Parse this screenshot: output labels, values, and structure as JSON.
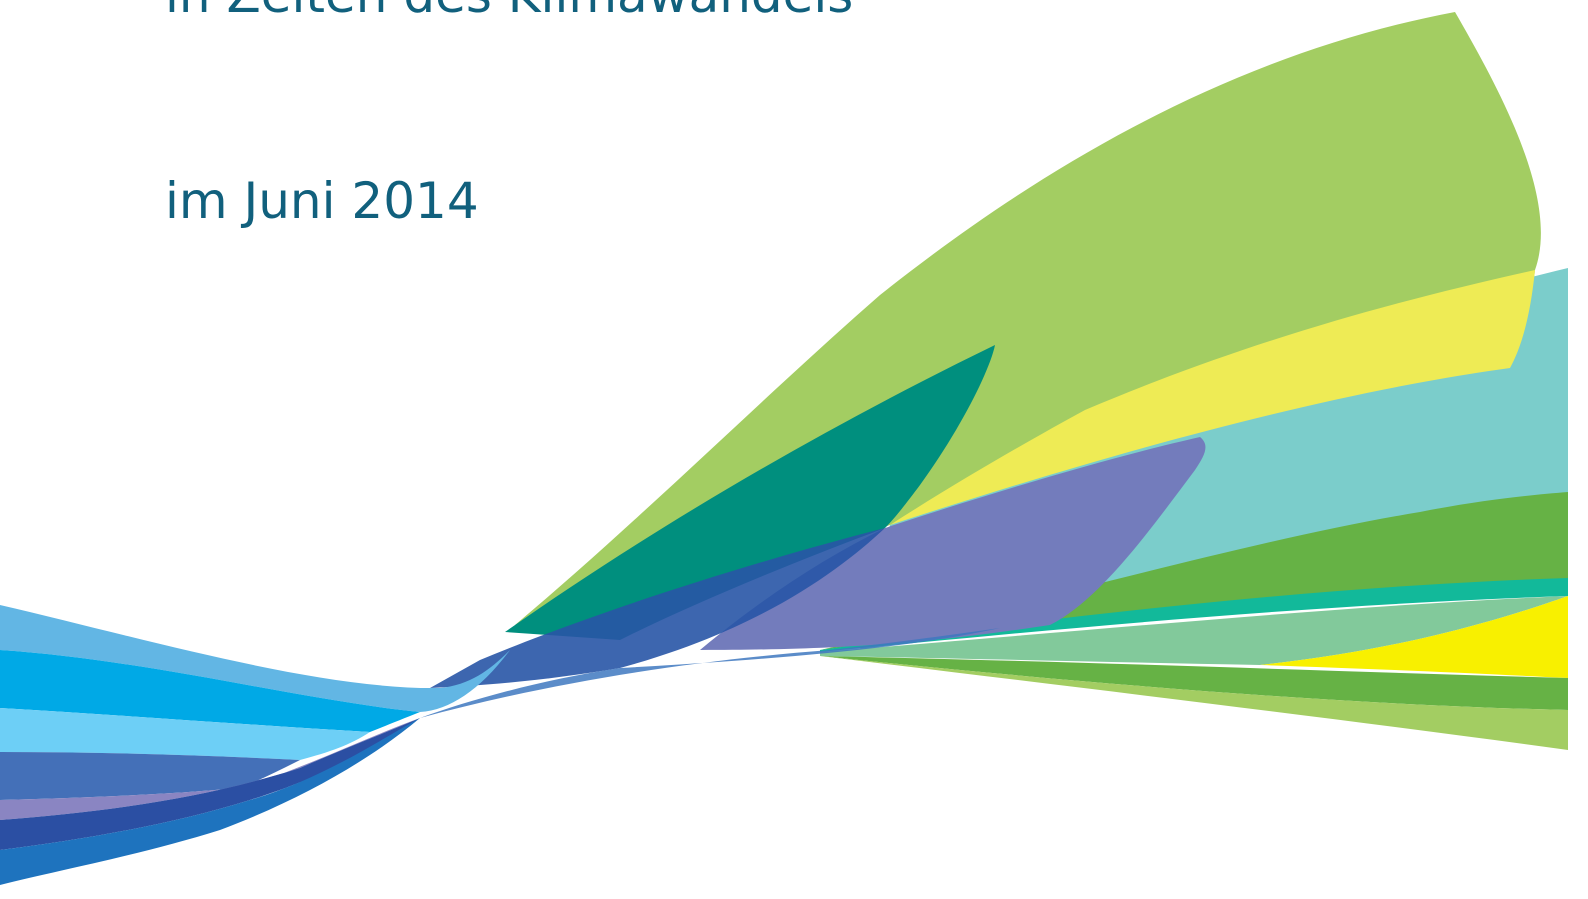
{
  "header": {
    "subtitle": "in Zeiten des Klimawandels",
    "date": "im Juni 2014"
  }
}
